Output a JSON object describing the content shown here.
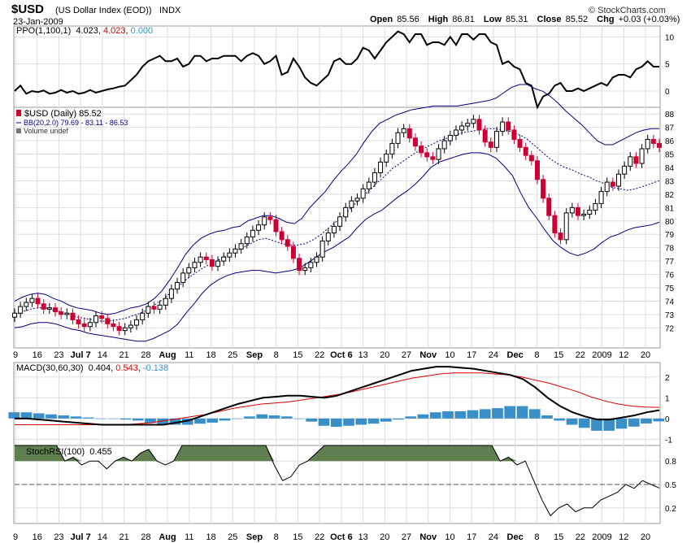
{
  "header": {
    "symbol": "$USD",
    "name": "(US Dollar Index (EOD))",
    "exchange": "INDX",
    "date": "23-Jan-2009",
    "open_label": "Open",
    "open": "85.56",
    "high_label": "High",
    "high": "86.81",
    "low_label": "Low",
    "low": "85.31",
    "close_label": "Close",
    "close": "85.52",
    "chg_label": "Chg",
    "chg": "+0.03 (+0.03%)",
    "copyright": "© StockCharts.com"
  },
  "ppo": {
    "label": "PPO(1,100,1)",
    "v1": "4.023",
    "v2": "4.023",
    "v3": "0.000",
    "colors": {
      "line": "#000000",
      "signal": "#cc0000",
      "hist": "#3399cc"
    }
  },
  "price": {
    "label": "$USD (Daily) 85.52",
    "bb_label": "BB(20,2.0) 79.69 - 83.11 - 86.53",
    "volume_label": "Volume undef",
    "colors": {
      "up": "#000000",
      "down": "#cc0033",
      "bands": "#000080"
    }
  },
  "macd": {
    "label": "MACD(30,60,30)",
    "v1": "0.404",
    "v2": "0.543",
    "v3": "-0.138",
    "colors": {
      "macd": "#000000",
      "signal": "#dd0000",
      "hist": "#3a8fc8"
    }
  },
  "stochrsi": {
    "label": "StochRSI(100)",
    "v1": "0.455",
    "colors": {
      "line": "#000000",
      "fill": "#5f7f50"
    }
  },
  "x_axis_ticks": [
    "9",
    "16",
    "23",
    "Jul 7",
    "14",
    "21",
    "28",
    "Aug",
    "11",
    "18",
    "25",
    "Sep",
    "8",
    "15",
    "22",
    "Oct 6",
    "13",
    "20",
    "27",
    "Nov",
    "10",
    "17",
    "24",
    "Dec",
    "8",
    "15",
    "22",
    "2009",
    "12",
    "20"
  ],
  "chart_data": [
    {
      "type": "line",
      "name": "PPO",
      "ylim": [
        -3,
        12
      ],
      "yticks": [
        0,
        5,
        10
      ],
      "values": [
        0,
        1,
        -0.5,
        0,
        -0.2,
        0.1,
        -0.5,
        -0.3,
        0.2,
        -0.3,
        0,
        -0.5,
        -0.3,
        0.2,
        -0.3,
        0,
        0.3,
        0.5,
        0.8,
        1,
        2,
        3,
        4.5,
        5.5,
        6,
        6.5,
        5.5,
        5.5,
        6,
        4.5,
        5,
        6.5,
        6.5,
        5.5,
        6,
        6,
        6.5,
        6.5,
        6.5,
        5.5,
        6.5,
        7,
        6.5,
        5,
        5.5,
        6.5,
        3,
        3.5,
        6,
        4.5,
        2.5,
        1.5,
        1,
        2,
        3,
        5.5,
        6,
        5,
        5,
        6,
        8,
        7.5,
        6,
        7.5,
        9,
        10,
        11,
        10.5,
        9,
        10.5,
        10.5,
        8.5,
        9,
        9,
        8.5,
        10,
        8.5,
        10.5,
        10.5,
        9.5,
        10.5,
        10.5,
        9,
        8.5,
        5,
        5.5,
        4.5,
        4,
        1.5,
        1,
        -3,
        -1,
        -0.5,
        1,
        1.5,
        0,
        0,
        0.5,
        0,
        0.5,
        1,
        1.5,
        1,
        2.5,
        3,
        3,
        2.5,
        4,
        4.5,
        5.5,
        4.5,
        4.5
      ]
    },
    {
      "type": "candlestick",
      "name": "$USD (Daily)",
      "ylim": [
        70.5,
        88.5
      ],
      "yticks": [
        72,
        73,
        74,
        75,
        76,
        77,
        78,
        79,
        80,
        81,
        82,
        83,
        84,
        85,
        86,
        87,
        88
      ],
      "closes": [
        73.1,
        73.6,
        73.9,
        74.2,
        73.8,
        73.4,
        73.5,
        73.2,
        73,
        73.1,
        72.6,
        72.3,
        72.1,
        72.4,
        72.9,
        72.7,
        72.3,
        72.1,
        71.8,
        72,
        72.2,
        72.6,
        73.1,
        73.6,
        73.4,
        73.7,
        74.2,
        74.9,
        75.4,
        76.1,
        76.5,
        76.9,
        77.3,
        77.1,
        76.6,
        77,
        77.3,
        77.6,
        77.9,
        78.3,
        78.8,
        79.3,
        79.7,
        80.3,
        80.1,
        79.2,
        78.6,
        78.1,
        77.2,
        76.3,
        76.5,
        76.9,
        77.3,
        78.5,
        79.1,
        79.6,
        80.3,
        81,
        81.5,
        81.7,
        82.4,
        82.9,
        83.6,
        84.4,
        85,
        85.8,
        86.6,
        86.9,
        86.2,
        85.6,
        85.1,
        84.8,
        84.6,
        85.4,
        86,
        86.4,
        86.8,
        87.1,
        87.3,
        87.6,
        86.8,
        85.9,
        85.5,
        86.7,
        87.4,
        86.8,
        86.1,
        85.5,
        84.9,
        84.5,
        83.1,
        81.7,
        80.4,
        79.1,
        78.6,
        80.6,
        81,
        80.4,
        80.5,
        80.8,
        81.3,
        82.2,
        82.9,
        82.6,
        83.5,
        84.1,
        84.8,
        84.3,
        85.4,
        86.1,
        85.8,
        85.5
      ],
      "bands_upper": [
        74,
        74.3,
        74.5,
        74.6,
        74.5,
        74.2,
        74,
        73.7,
        73.5,
        73.4,
        73.3,
        73.1,
        73,
        73.1,
        73.3,
        73.5,
        73.6,
        73.8,
        74.2,
        74.8,
        75.6,
        76.5,
        77.5,
        78.2,
        78.7,
        79,
        79.2,
        79.3,
        79.5,
        79.6,
        80,
        80.2,
        80.4,
        80.4,
        80.2,
        79.9,
        79.8,
        80.2,
        81,
        81.6,
        82.2,
        83,
        83.7,
        84.3,
        85,
        85.9,
        86.7,
        87.3,
        87.6,
        87.9,
        88.1,
        88.3,
        88.4,
        88.5,
        88.6,
        88.6,
        88.6,
        88.6,
        88.7,
        88.8,
        88.9,
        89,
        89.2,
        89.6,
        90,
        90.2,
        90.2,
        89.9,
        89.7,
        89.3,
        88.8,
        88.2,
        87.7,
        87.2,
        86.6,
        86,
        85.7,
        85.7,
        86,
        86.3,
        86.6,
        86.8,
        86.9,
        86.9
      ],
      "bands_mid": [
        73,
        73.2,
        73.4,
        73.5,
        73.5,
        73.3,
        73.2,
        73,
        72.8,
        72.7,
        72.6,
        72.5,
        72.5,
        72.6,
        72.7,
        72.9,
        73.1,
        73.4,
        73.8,
        74.2,
        74.7,
        75.2,
        75.7,
        76.1,
        76.5,
        76.8,
        77.1,
        77.4,
        77.7,
        78,
        78.3,
        78.6,
        78.7,
        78.5,
        78.3,
        78.2,
        78.2,
        78.3,
        78.6,
        79,
        79.5,
        80,
        80.5,
        81.1,
        81.7,
        82.2,
        82.8,
        83.3,
        83.9,
        84.3,
        84.7,
        85.1,
        85.4,
        85.7,
        86,
        86.2,
        86.4,
        86.6,
        86.7,
        86.8,
        86.9,
        86.9,
        86.8,
        86.7,
        86.5,
        86.2,
        85.7,
        85.2,
        84.7,
        84.3,
        84,
        83.8,
        83.5,
        83.3,
        83,
        82.8,
        82.5,
        82.4,
        82.3,
        82.4,
        82.6,
        82.8,
        83
      ],
      "bands_lower": [
        72,
        72.1,
        72.3,
        72.4,
        72.4,
        72.3,
        72.1,
        71.9,
        71.8,
        71.6,
        71.5,
        71.4,
        71.3,
        71.2,
        71.1,
        71,
        71,
        71.2,
        71.5,
        71.8,
        72.3,
        73.1,
        73.8,
        74.6,
        75.2,
        75.6,
        75.9,
        76.1,
        76.2,
        76.3,
        76.3,
        76.2,
        76.1,
        76.2,
        76.3,
        76.5,
        76.9,
        77.3,
        77.7,
        78,
        78.4,
        78.8,
        79.5,
        80.1,
        80.5,
        80.8,
        81.3,
        81.8,
        82.2,
        82.7,
        83.3,
        84,
        84.4,
        84.6,
        84.8,
        85,
        85.1,
        85.1,
        85,
        84.7,
        84.1,
        83.4,
        82.1,
        81,
        80.2,
        79.3,
        78.5,
        78,
        77.6,
        77.4,
        77.6,
        77.9,
        78.4,
        78.8,
        79,
        79.3,
        79.5,
        79.6,
        79.7,
        79.9
      ]
    },
    {
      "type": "line",
      "name": "MACD",
      "ylim": [
        -1.3,
        2.7
      ],
      "yticks": [
        -1,
        0,
        1,
        2
      ],
      "macd": [
        0,
        0,
        -0.05,
        -0.1,
        -0.15,
        -0.2,
        -0.25,
        -0.3,
        -0.3,
        -0.3,
        -0.3,
        -0.3,
        -0.3,
        -0.2,
        -0.1,
        0.1,
        0.3,
        0.5,
        0.7,
        0.85,
        1,
        1.05,
        1.1,
        1.1,
        1.05,
        1,
        1.1,
        1.3,
        1.5,
        1.7,
        1.9,
        2.1,
        2.3,
        2.4,
        2.5,
        2.5,
        2.45,
        2.4,
        2.3,
        2.2,
        2.1,
        1.9,
        1.5,
        1,
        0.6,
        0.3,
        0.1,
        -0.05,
        -0.05,
        0.05,
        0.15,
        0.3,
        0.4
      ],
      "signal": [
        -0.3,
        -0.3,
        -0.3,
        -0.3,
        -0.3,
        -0.3,
        -0.3,
        -0.3,
        -0.3,
        -0.25,
        -0.2,
        -0.1,
        0,
        0.1,
        0.2,
        0.35,
        0.5,
        0.6,
        0.7,
        0.75,
        0.8,
        0.9,
        1,
        1.1,
        1.2,
        1.35,
        1.5,
        1.65,
        1.8,
        1.95,
        2.05,
        2.15,
        2.2,
        2.2,
        2.2,
        2.15,
        2.1,
        2,
        1.85,
        1.7,
        1.5,
        1.3,
        1.05,
        0.85,
        0.7,
        0.6,
        0.55,
        0.54
      ]
    },
    {
      "type": "line",
      "name": "StochRSI",
      "ylim": [
        0,
        1
      ],
      "yticks": [
        0.2,
        0.5,
        0.8
      ],
      "values": [
        1,
        1,
        1,
        1,
        1,
        1,
        0.8,
        0.85,
        0.75,
        0.8,
        0.8,
        0.7,
        0.8,
        0.85,
        0.8,
        0.9,
        0.95,
        0.8,
        0.75,
        0.8,
        1,
        1,
        1,
        1,
        1,
        1,
        1,
        1,
        1,
        1,
        1,
        0.75,
        0.55,
        0.6,
        0.75,
        0.8,
        0.9,
        1,
        1,
        1,
        1,
        1,
        1,
        1,
        1,
        1,
        1,
        1,
        1,
        1,
        1,
        1,
        1,
        1,
        1,
        1,
        1,
        1,
        0.8,
        0.85,
        0.75,
        0.8,
        0.55,
        0.3,
        0.1,
        0.2,
        0.25,
        0.15,
        0.2,
        0.2,
        0.3,
        0.35,
        0.4,
        0.5,
        0.45,
        0.55,
        0.5,
        0.455
      ]
    }
  ]
}
